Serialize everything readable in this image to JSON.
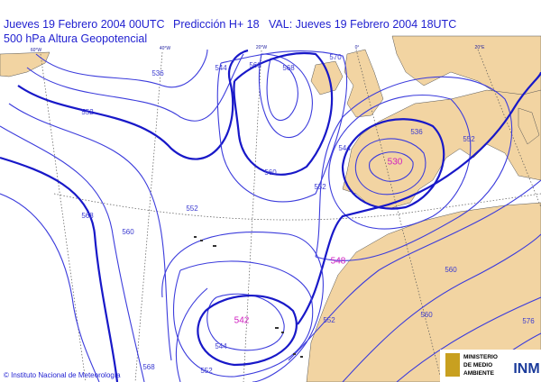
{
  "header": {
    "run": "Jueves 19 Febrero 2004 00UTC",
    "forecast": "Predicción H+ 18",
    "valid": "VAL: Jueves 19 Febrero 2004 18UTC",
    "field": "500 hPa  Altura Geopotencial"
  },
  "longitude_labels": [
    "60°W",
    "40°W",
    "20°W",
    "0°",
    "20°E"
  ],
  "contour_labels": [
    536,
    544,
    552,
    560,
    568,
    570,
    552,
    560,
    544,
    536,
    552,
    560,
    568,
    576,
    552,
    560,
    568,
    552,
    544,
    552,
    560
  ],
  "centers": [
    530,
    548,
    542
  ],
  "footer": {
    "credit": "© Instituto Nacional de Meteorología",
    "ministry": [
      "MINISTERIO",
      "DE MEDIO",
      "AMBIENTE"
    ],
    "logo": "INM"
  }
}
